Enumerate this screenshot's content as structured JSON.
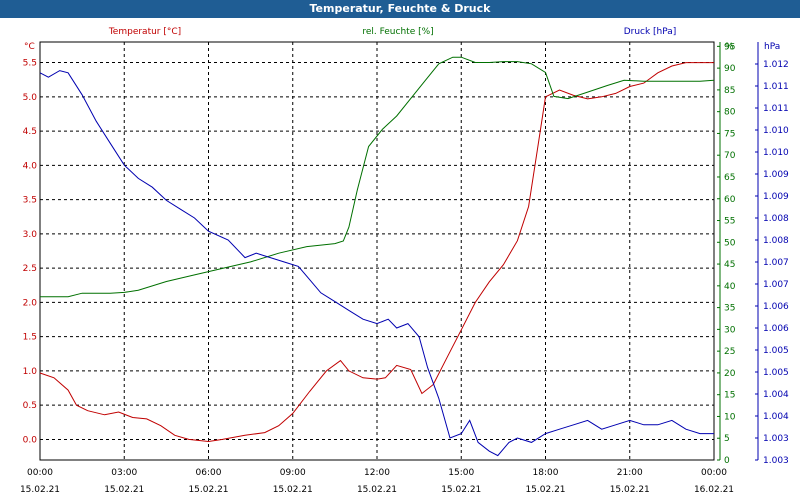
{
  "header": {
    "title": "Temperatur, Feuchte & Druck"
  },
  "colors": {
    "temperature": "#c00000",
    "humidity": "#007000",
    "pressure": "#0000b0",
    "grid": "#000000"
  },
  "chart_data": {
    "type": "line",
    "title": "Temperatur, Feuchte & Druck",
    "x_labels_time": [
      "00:00",
      "03:00",
      "06:00",
      "09:00",
      "12:00",
      "15:00",
      "18:00",
      "21:00",
      "00:00"
    ],
    "x_labels_date": [
      "15.02.21",
      "15.02.21",
      "15.02.21",
      "15.02.21",
      "15.02.21",
      "15.02.21",
      "15.02.21",
      "15.02.21",
      "16.02.21"
    ],
    "x_range_hours": [
      0,
      24
    ],
    "axes": {
      "temperature": {
        "label": "Temperatur [°C]",
        "unit": "°C",
        "ylim": [
          -0.3,
          5.8
        ],
        "ticks": [
          "0.0",
          "0.5",
          "1.0",
          "1.5",
          "2.0",
          "2.5",
          "3.0",
          "3.5",
          "4.0",
          "4.5",
          "5.0",
          "5.5"
        ],
        "tick_values": [
          0,
          0.5,
          1,
          1.5,
          2,
          2.5,
          3,
          3.5,
          4,
          4.5,
          5,
          5.5
        ]
      },
      "humidity": {
        "label": "rel. Feuchte [%]",
        "unit": "%",
        "ylim": [
          0,
          96
        ],
        "ticks": [
          "0",
          "5",
          "10",
          "15",
          "20",
          "25",
          "30",
          "35",
          "40",
          "45",
          "50",
          "55",
          "60",
          "65",
          "70",
          "75",
          "80",
          "85",
          "90",
          "95"
        ],
        "tick_values": [
          0,
          5,
          10,
          15,
          20,
          25,
          30,
          35,
          40,
          45,
          50,
          55,
          60,
          65,
          70,
          75,
          80,
          85,
          90,
          95
        ]
      },
      "pressure": {
        "label": "Druck [hPa]",
        "unit": "hPa",
        "ylim": [
          1.003,
          1.0125
        ],
        "ticks": [
          "1.003",
          "1.003",
          "1.004",
          "1.004",
          "1.005",
          "1.005",
          "1.006",
          "1.006",
          "1.007",
          "1.007",
          "1.008",
          "1.008",
          "1.009",
          "1.009",
          "1.010",
          "1.010",
          "1.011",
          "1.011",
          "1.012"
        ],
        "tick_values": [
          1.003,
          1.0035,
          1.004,
          1.0045,
          1.005,
          1.0055,
          1.006,
          1.0065,
          1.007,
          1.0075,
          1.008,
          1.0085,
          1.009,
          1.0095,
          1.01,
          1.0105,
          1.011,
          1.0115,
          1.012
        ]
      }
    },
    "series": [
      {
        "name": "Temperatur [°C]",
        "axis": "temperature",
        "points": [
          [
            0,
            0.97
          ],
          [
            0.5,
            0.9
          ],
          [
            1,
            0.72
          ],
          [
            1.3,
            0.5
          ],
          [
            1.7,
            0.42
          ],
          [
            2.3,
            0.36
          ],
          [
            2.8,
            0.4
          ],
          [
            3.3,
            0.32
          ],
          [
            3.8,
            0.3
          ],
          [
            4.3,
            0.2
          ],
          [
            4.8,
            0.06
          ],
          [
            5.3,
            0.0
          ],
          [
            6,
            -0.03
          ],
          [
            6.5,
            0.0
          ],
          [
            7.3,
            0.06
          ],
          [
            8,
            0.1
          ],
          [
            8.5,
            0.2
          ],
          [
            9,
            0.38
          ],
          [
            9.6,
            0.7
          ],
          [
            10.2,
            1.0
          ],
          [
            10.7,
            1.15
          ],
          [
            11,
            1.0
          ],
          [
            11.5,
            0.9
          ],
          [
            12,
            0.88
          ],
          [
            12.3,
            0.9
          ],
          [
            12.7,
            1.08
          ],
          [
            13.2,
            1.02
          ],
          [
            13.6,
            0.67
          ],
          [
            14,
            0.8
          ],
          [
            14.5,
            1.2
          ],
          [
            15,
            1.6
          ],
          [
            15.5,
            2.0
          ],
          [
            16,
            2.3
          ],
          [
            16.5,
            2.55
          ],
          [
            17,
            2.9
          ],
          [
            17.4,
            3.4
          ],
          [
            17.7,
            4.2
          ],
          [
            18,
            5.0
          ],
          [
            18.5,
            5.1
          ],
          [
            19,
            5.02
          ],
          [
            19.5,
            4.97
          ],
          [
            20,
            5.0
          ],
          [
            20.5,
            5.05
          ],
          [
            21,
            5.15
          ],
          [
            21.5,
            5.2
          ],
          [
            22,
            5.35
          ],
          [
            22.5,
            5.45
          ],
          [
            23,
            5.5
          ],
          [
            24,
            5.5
          ]
        ]
      },
      {
        "name": "rel. Feuchte [%]",
        "axis": "humidity",
        "points": [
          [
            0,
            37.5
          ],
          [
            1,
            37.5
          ],
          [
            1.5,
            38.3
          ],
          [
            2.5,
            38.3
          ],
          [
            3,
            38.5
          ],
          [
            3.5,
            39
          ],
          [
            4.5,
            41
          ],
          [
            5.5,
            42.5
          ],
          [
            6.5,
            44
          ],
          [
            7.5,
            45.5
          ],
          [
            8.5,
            47.5
          ],
          [
            9.5,
            49
          ],
          [
            10.5,
            49.7
          ],
          [
            10.8,
            50.3
          ],
          [
            11,
            53.5
          ],
          [
            11.3,
            62
          ],
          [
            11.7,
            72
          ],
          [
            12.2,
            76
          ],
          [
            12.7,
            79
          ],
          [
            13.2,
            83
          ],
          [
            13.7,
            87
          ],
          [
            14.2,
            91
          ],
          [
            14.7,
            92.5
          ],
          [
            15,
            92.5
          ],
          [
            15.5,
            91.3
          ],
          [
            16,
            91.3
          ],
          [
            16.5,
            91.5
          ],
          [
            17,
            91.5
          ],
          [
            17.5,
            91
          ],
          [
            18,
            89
          ],
          [
            18.3,
            83.5
          ],
          [
            18.8,
            83
          ],
          [
            19.5,
            84.5
          ],
          [
            20.2,
            86
          ],
          [
            20.8,
            87.2
          ],
          [
            21.5,
            87
          ],
          [
            22.5,
            87
          ],
          [
            23.5,
            87
          ],
          [
            24,
            87.2
          ]
        ]
      },
      {
        "name": "Druck [hPa]",
        "axis": "pressure",
        "points": [
          [
            0,
            1.0118
          ],
          [
            0.3,
            1.0117
          ],
          [
            0.7,
            1.01185
          ],
          [
            1,
            1.0118
          ],
          [
            1.5,
            1.0113
          ],
          [
            2,
            1.0107
          ],
          [
            2.5,
            1.0102
          ],
          [
            3,
            1.0097
          ],
          [
            3.5,
            1.0094
          ],
          [
            4,
            1.0092
          ],
          [
            4.5,
            1.0089
          ],
          [
            5,
            1.0087
          ],
          [
            5.5,
            1.0085
          ],
          [
            6,
            1.0082
          ],
          [
            6.7,
            1.008
          ],
          [
            7.3,
            1.0076
          ],
          [
            7.7,
            1.0077
          ],
          [
            8.2,
            1.0076
          ],
          [
            8.7,
            1.0075
          ],
          [
            9.2,
            1.0074
          ],
          [
            9.6,
            1.0071
          ],
          [
            10,
            1.0068
          ],
          [
            10.5,
            1.0066
          ],
          [
            11,
            1.0064
          ],
          [
            11.5,
            1.0062
          ],
          [
            12,
            1.0061
          ],
          [
            12.4,
            1.0062
          ],
          [
            12.7,
            1.006
          ],
          [
            13.1,
            1.0061
          ],
          [
            13.5,
            1.0058
          ],
          [
            13.8,
            1.0051
          ],
          [
            14.2,
            1.0044
          ],
          [
            14.6,
            1.0035
          ],
          [
            15,
            1.0036
          ],
          [
            15.3,
            1.0039
          ],
          [
            15.6,
            1.0034
          ],
          [
            16,
            1.0032
          ],
          [
            16.3,
            1.0031
          ],
          [
            16.7,
            1.0034
          ],
          [
            17,
            1.0035
          ],
          [
            17.5,
            1.0034
          ],
          [
            18,
            1.0036
          ],
          [
            18.5,
            1.0037
          ],
          [
            19,
            1.0038
          ],
          [
            19.5,
            1.0039
          ],
          [
            20,
            1.0037
          ],
          [
            20.5,
            1.0038
          ],
          [
            21,
            1.0039
          ],
          [
            21.5,
            1.0038
          ],
          [
            22,
            1.0038
          ],
          [
            22.5,
            1.0039
          ],
          [
            23,
            1.0037
          ],
          [
            23.5,
            1.0036
          ],
          [
            24,
            1.0036
          ]
        ]
      }
    ]
  }
}
